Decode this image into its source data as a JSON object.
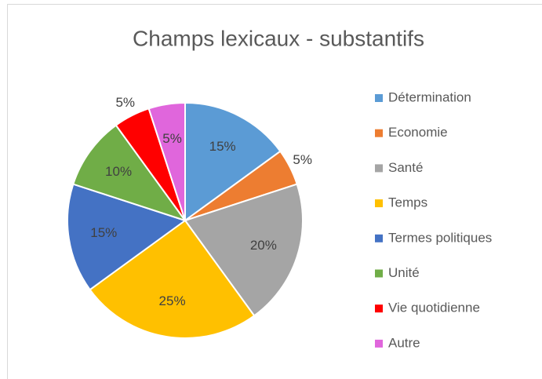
{
  "chart_data": {
    "type": "pie",
    "title": "Champs lexicaux - substantifs",
    "categories": [
      "Détermination",
      "Economie",
      "Santé",
      "Temps",
      "Termes politiques",
      "Unité",
      "Vie quotidienne",
      "Autre"
    ],
    "values": [
      15,
      5,
      20,
      25,
      15,
      10,
      5,
      5
    ],
    "value_labels": [
      "15%",
      "5%",
      "20%",
      "25%",
      "15%",
      "10%",
      "5%",
      "5%"
    ],
    "colors": [
      "#5b9bd5",
      "#ed7d31",
      "#a5a5a5",
      "#ffc000",
      "#4472c4",
      "#70ad47",
      "#ff0000",
      "#e066dc"
    ],
    "legend": "right"
  }
}
